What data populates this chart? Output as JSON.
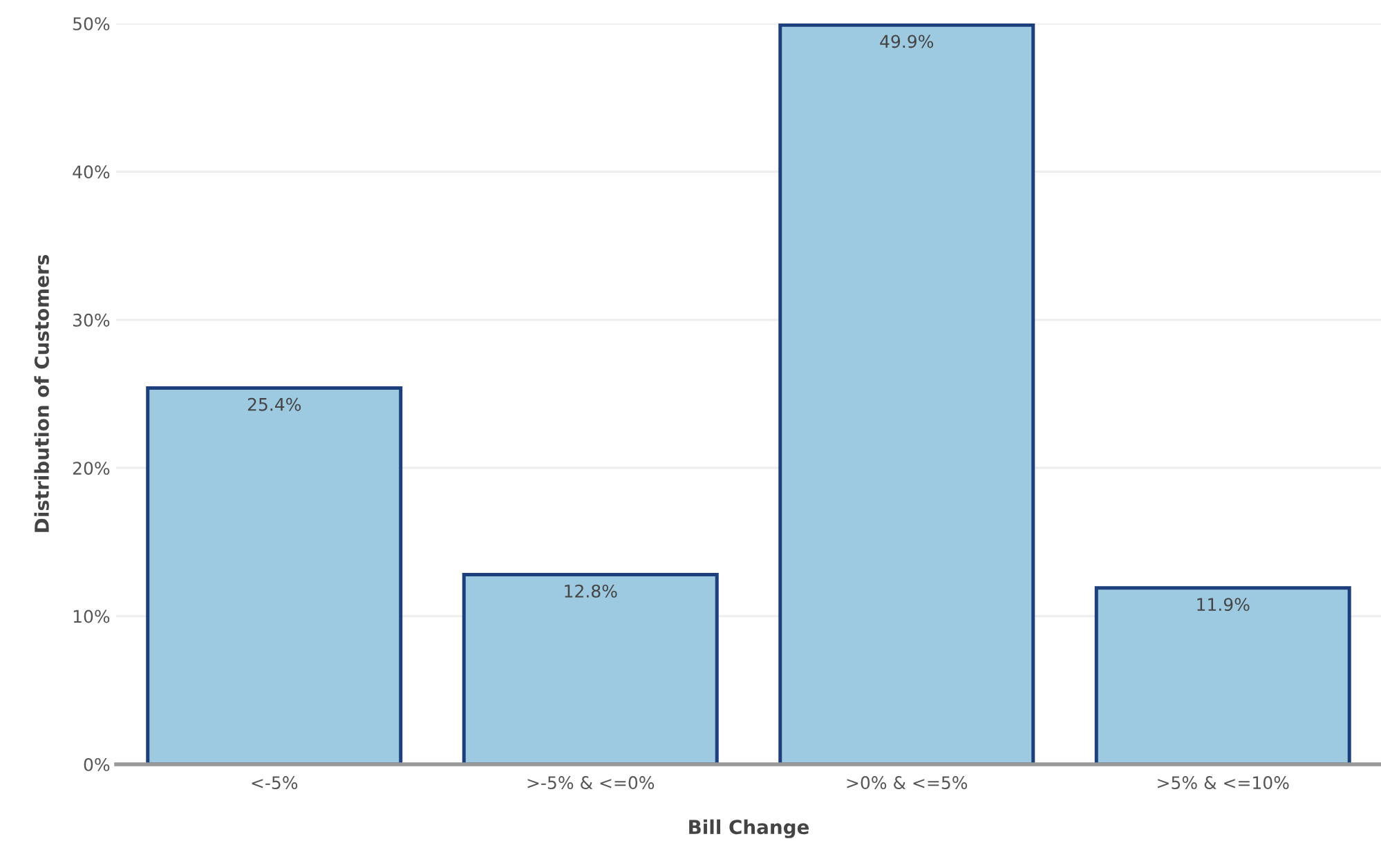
{
  "chart_data": {
    "type": "bar",
    "xlabel": "Bill Change",
    "ylabel": "Distribution of Customers",
    "categories": [
      "<-5%",
      ">-5% & <=0%",
      ">0% & <=5%",
      ">5% & <=10%"
    ],
    "values": [
      25.4,
      12.8,
      49.9,
      11.9
    ],
    "value_labels": [
      "25.4%",
      "12.8%",
      "49.9%",
      "11.9%"
    ],
    "color": "#9ecae1",
    "ylim": [
      0,
      50
    ],
    "yticks": [
      {
        "value": 0,
        "label": "0%"
      },
      {
        "value": 10,
        "label": "10%"
      },
      {
        "value": 20,
        "label": "20%"
      },
      {
        "value": 30,
        "label": "30%"
      },
      {
        "value": 40,
        "label": "40%"
      },
      {
        "value": 50,
        "label": "50%"
      }
    ],
    "grid": "y"
  }
}
